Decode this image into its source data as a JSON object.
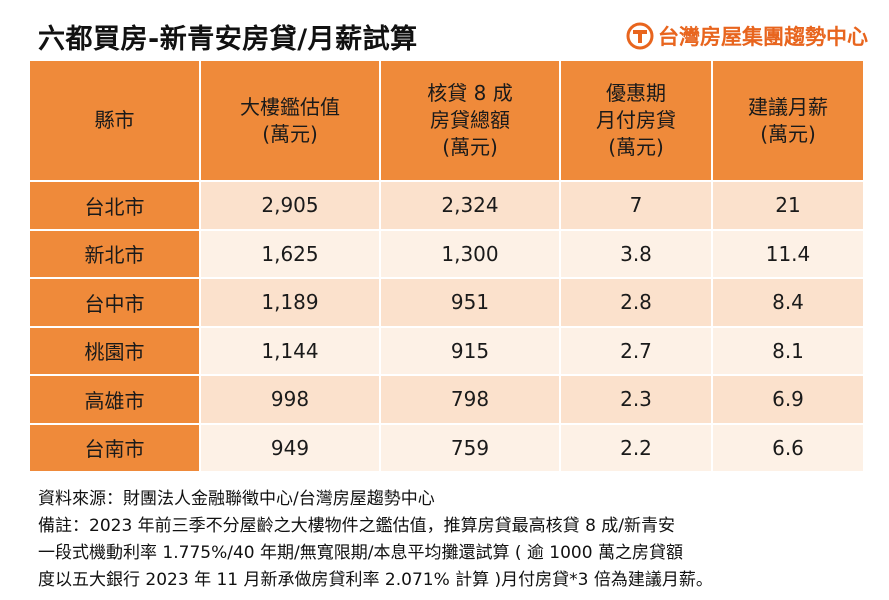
{
  "title": "六都買房-新青安房貸/月薪試算",
  "brand": {
    "name": "台灣房屋集團趨勢中心",
    "logo_icon": "taiwan-realty-logo-icon",
    "color": "#e8651e"
  },
  "table": {
    "headers": [
      [
        "縣市"
      ],
      [
        "大樓鑑估值",
        "(萬元)"
      ],
      [
        "核貸 8 成",
        "房貸總額",
        "(萬元)"
      ],
      [
        "優惠期",
        "月付房貸",
        "(萬元)"
      ],
      [
        "建議月薪",
        "(萬元)"
      ]
    ],
    "rows": [
      [
        "台北市",
        "2,905",
        "2,324",
        "7",
        "21"
      ],
      [
        "新北市",
        "1,625",
        "1,300",
        "3.8",
        "11.4"
      ],
      [
        "台中市",
        "1,189",
        "951",
        "2.8",
        "8.4"
      ],
      [
        "桃園市",
        "1,144",
        "915",
        "2.7",
        "8.1"
      ],
      [
        "高雄市",
        "998",
        "798",
        "2.3",
        "6.9"
      ],
      [
        "台南市",
        "949",
        "759",
        "2.2",
        "6.6"
      ]
    ],
    "colors": {
      "header_bg": "#ef8a3a",
      "row_light": "#fdf1e6",
      "row_dark": "#fbe1cc"
    }
  },
  "notes": {
    "source": "資料來源：財團法人金融聯徵中心/台灣房屋趨勢中心",
    "remark_lines": [
      "備註：2023 年前三季不分屋齡之大樓物件之鑑估值，推算房貸最高核貸 8 成/新青安",
      "一段式機動利率 1.775%/40 年期/無寬限期/本息平均攤還試算 ( 逾 1000 萬之房貸額",
      "度以五大銀行 2023 年 11 月新承做房貸利率 2.071% 計算 )月付房貸*3 倍為建議月薪。"
    ]
  }
}
